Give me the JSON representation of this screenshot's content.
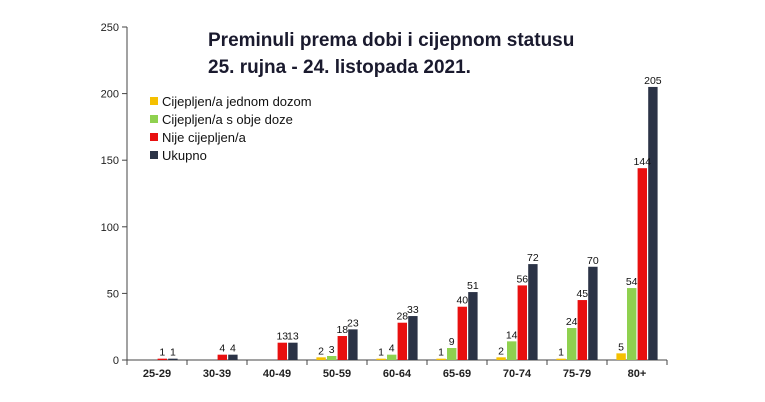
{
  "chart_data": {
    "type": "bar",
    "title_lines": [
      "Preminuli prema dobi i cijepnom statusu",
      "25. rujna - 24. listopada 2021."
    ],
    "categories": [
      "25-29",
      "30-39",
      "40-49",
      "50-59",
      "60-64",
      "65-69",
      "70-74",
      "75-79",
      "80+"
    ],
    "series": [
      {
        "name": "Cijepljen/a jednom dozom",
        "color": "#f5c000",
        "values": [
          0,
          0,
          0,
          2,
          1,
          1,
          2,
          1,
          5
        ]
      },
      {
        "name": "Cijepljen/a s obje doze",
        "color": "#8fd14f",
        "values": [
          0,
          0,
          0,
          3,
          4,
          9,
          14,
          24,
          54
        ]
      },
      {
        "name": "Nije cijepljen/a",
        "color": "#e81010",
        "values": [
          1,
          4,
          13,
          18,
          28,
          40,
          56,
          45,
          144
        ]
      },
      {
        "name": "Ukupno",
        "color": "#2b3346",
        "values": [
          1,
          4,
          13,
          23,
          33,
          51,
          72,
          70,
          205
        ]
      }
    ],
    "data_labels": [
      [
        "",
        "",
        "",
        "2",
        "1",
        "1",
        "2",
        "1",
        "5"
      ],
      [
        "",
        "",
        "",
        "3",
        "4",
        "9",
        "14",
        "24",
        "54"
      ],
      [
        "1",
        "4",
        "13",
        "18",
        "28",
        "40",
        "56",
        "45",
        "144"
      ],
      [
        "1",
        "4",
        "13",
        "23",
        "33",
        "51",
        "72",
        "70",
        "205"
      ]
    ],
    "ylim": [
      0,
      250
    ],
    "yticks": [
      0,
      50,
      100,
      150,
      200,
      250
    ],
    "xlabel": "",
    "ylabel": "",
    "grid": false,
    "legend_position": "top-left"
  }
}
